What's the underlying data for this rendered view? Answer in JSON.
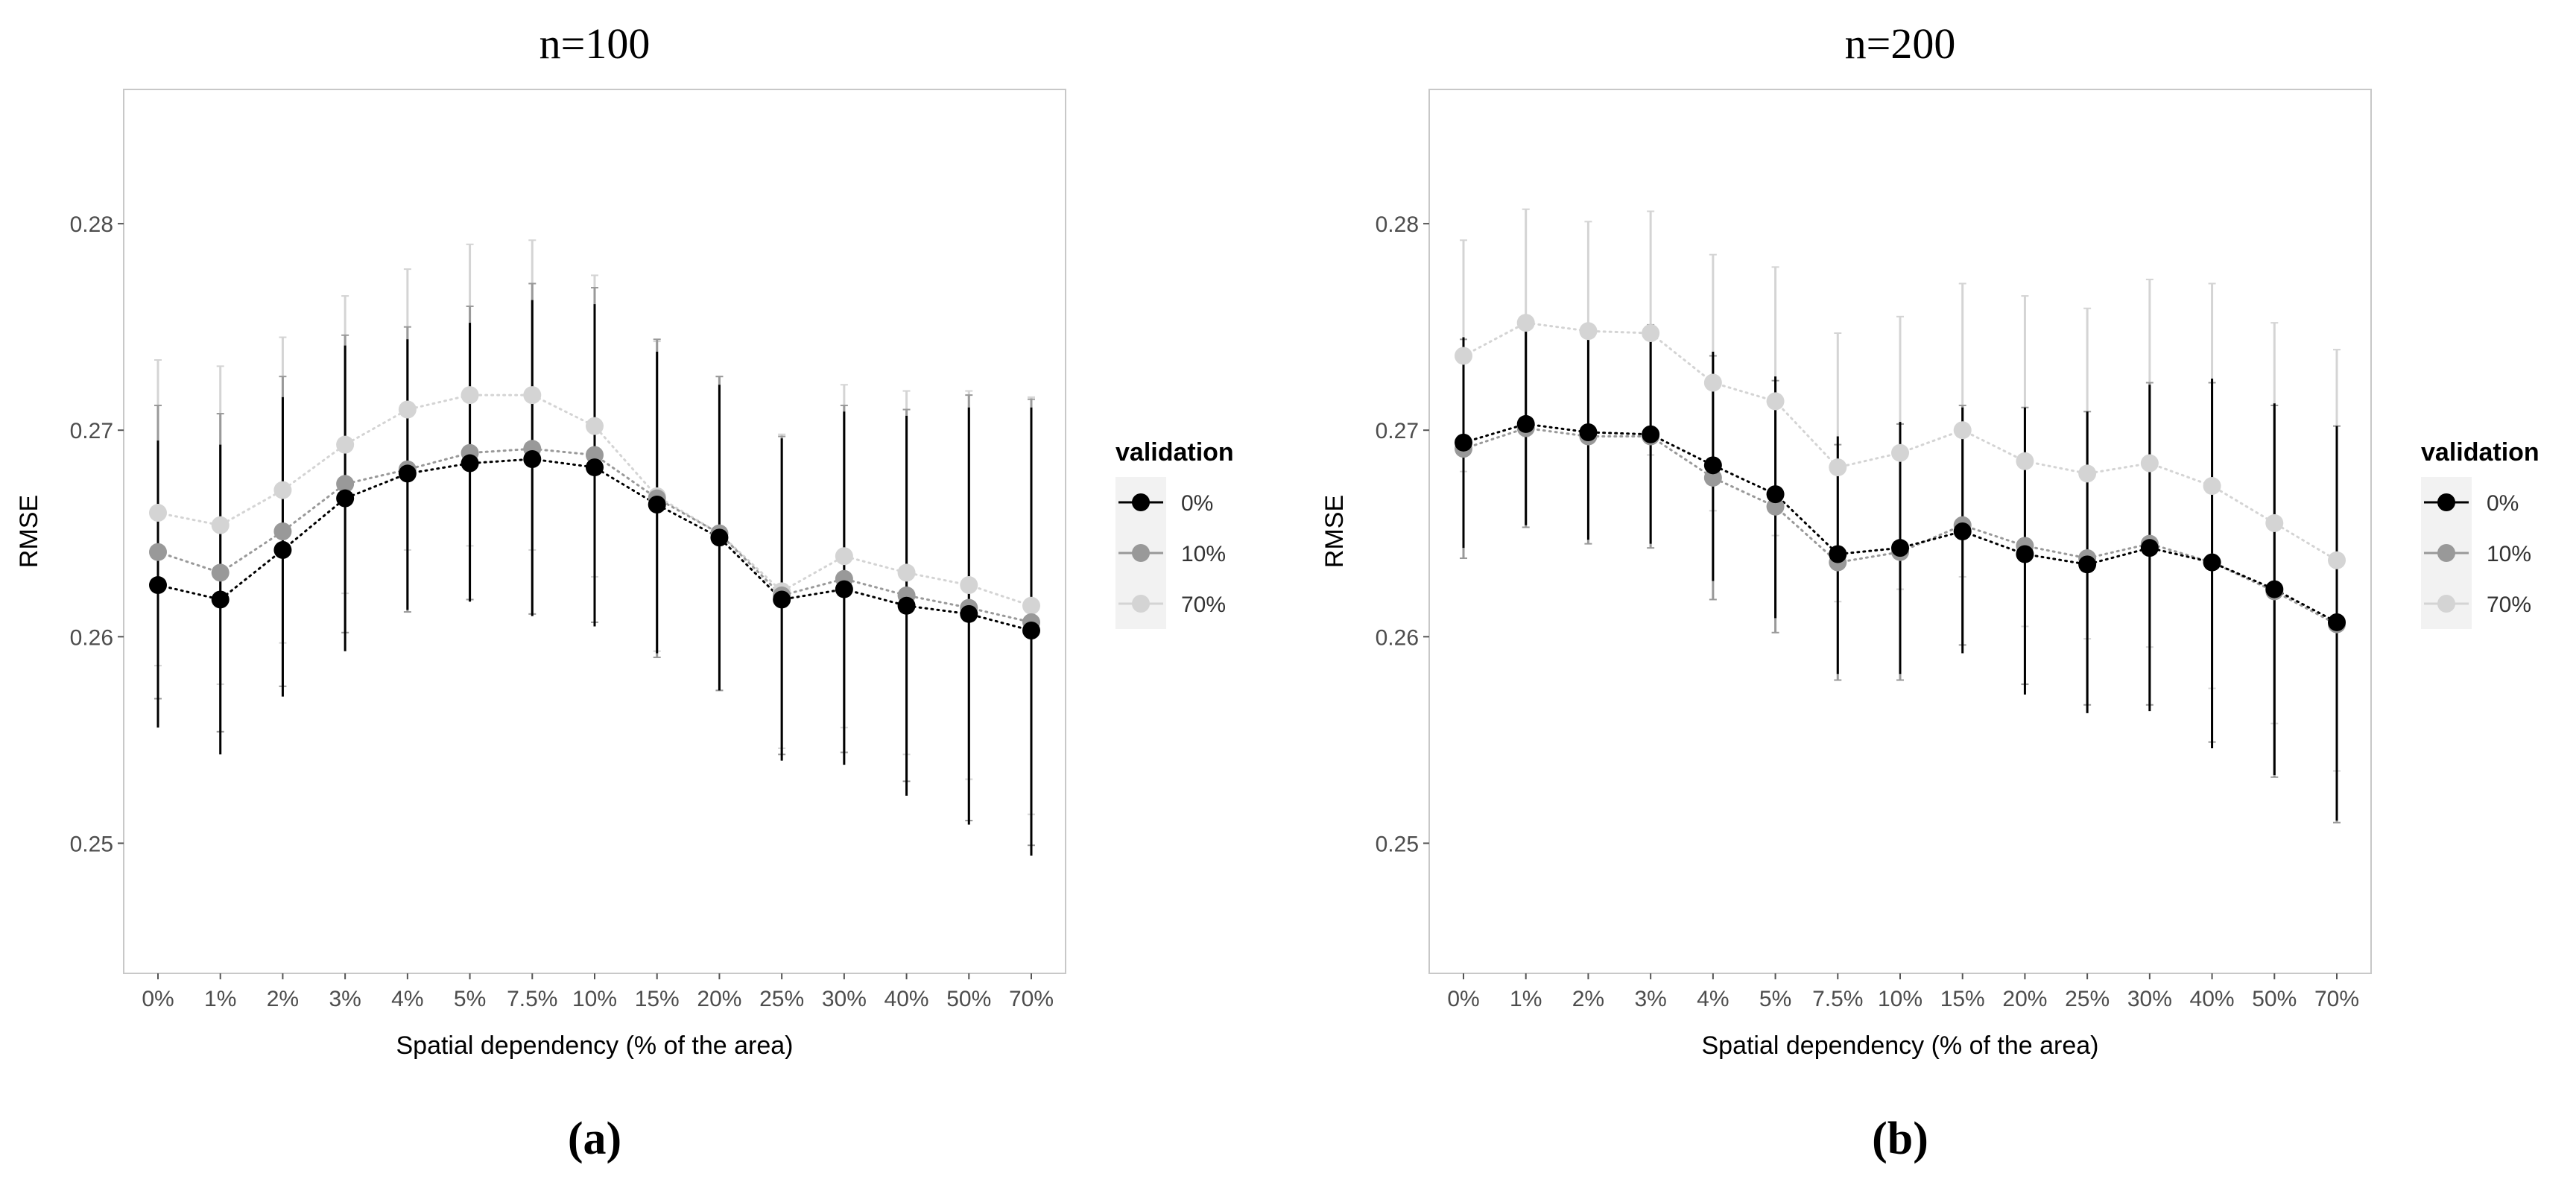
{
  "legend_title": "validation",
  "panels": [
    {
      "title": "n=100",
      "caption": "(a)",
      "xlabel": "Spatial dependency (% of the area)",
      "ylabel": "RMSE"
    },
    {
      "title": "n=200",
      "caption": "(b)",
      "xlabel": "Spatial dependency (% of the area)",
      "ylabel": "RMSE"
    }
  ],
  "chart_data": [
    {
      "type": "line",
      "title": "n=100",
      "xlabel": "Spatial dependency (% of the area)",
      "ylabel": "RMSE",
      "ylim": [
        0.2437,
        0.2865
      ],
      "yticks": [
        0.25,
        0.26,
        0.27,
        0.28
      ],
      "ytick_labels": [
        "0.25",
        "0.26",
        "0.27",
        "0.28"
      ],
      "grid": false,
      "legend_title": "validation",
      "legend_position": "right",
      "categories": [
        "0%",
        "1%",
        "2%",
        "3%",
        "4%",
        "5%",
        "7.5%",
        "10%",
        "15%",
        "20%",
        "25%",
        "30%",
        "40%",
        "50%",
        "70%"
      ],
      "series": [
        {
          "name": "70%",
          "color": "#d4d4d4",
          "values": [
            0.266,
            0.2654,
            0.2671,
            0.2693,
            0.271,
            0.2717,
            0.2717,
            0.2702,
            0.2668,
            0.265,
            0.2622,
            0.2639,
            0.2631,
            0.2625,
            0.2615
          ],
          "upper": [
            0.2734,
            0.2731,
            0.2745,
            0.2765,
            0.2778,
            0.279,
            0.2792,
            0.2775,
            0.2743,
            0.2726,
            0.2698,
            0.2722,
            0.2719,
            0.2719,
            0.2716
          ],
          "lower": [
            0.2586,
            0.2577,
            0.2597,
            0.2621,
            0.2642,
            0.2644,
            0.2642,
            0.2629,
            0.2593,
            0.2574,
            0.2546,
            0.2556,
            0.2543,
            0.2531,
            0.2514
          ]
        },
        {
          "name": "10%",
          "color": "#999999",
          "values": [
            0.2641,
            0.2631,
            0.2651,
            0.2674,
            0.2681,
            0.2689,
            0.2691,
            0.2688,
            0.2667,
            0.265,
            0.262,
            0.2628,
            0.262,
            0.2614,
            0.2607
          ],
          "upper": [
            0.2712,
            0.2708,
            0.2726,
            0.2746,
            0.275,
            0.276,
            0.2771,
            0.2769,
            0.2744,
            0.2726,
            0.2697,
            0.2712,
            0.271,
            0.2717,
            0.2715
          ],
          "lower": [
            0.257,
            0.2554,
            0.2576,
            0.2602,
            0.2612,
            0.2618,
            0.2611,
            0.2607,
            0.259,
            0.2574,
            0.2543,
            0.2544,
            0.253,
            0.2511,
            0.2499
          ]
        },
        {
          "name": "0%",
          "color": "#000000",
          "values": [
            0.2625,
            0.2618,
            0.2642,
            0.2667,
            0.2679,
            0.2684,
            0.2686,
            0.2682,
            0.2664,
            0.2648,
            0.2618,
            0.2623,
            0.2615,
            0.2611,
            0.2603
          ],
          "upper": [
            0.2695,
            0.2693,
            0.2716,
            0.2741,
            0.2744,
            0.2752,
            0.2763,
            0.2761,
            0.2738,
            0.2722,
            0.2696,
            0.2709,
            0.2707,
            0.2711,
            0.2711
          ],
          "lower": [
            0.2556,
            0.2543,
            0.2571,
            0.2593,
            0.2613,
            0.2617,
            0.261,
            0.2605,
            0.2592,
            0.2574,
            0.254,
            0.2538,
            0.2523,
            0.2509,
            0.2494
          ]
        }
      ]
    },
    {
      "type": "line",
      "title": "n=200",
      "xlabel": "Spatial dependency (% of the area)",
      "ylabel": "RMSE",
      "ylim": [
        0.2437,
        0.2865
      ],
      "yticks": [
        0.25,
        0.26,
        0.27,
        0.28
      ],
      "ytick_labels": [
        "0.25",
        "0.26",
        "0.27",
        "0.28"
      ],
      "grid": false,
      "legend_title": "validation",
      "legend_position": "right",
      "categories": [
        "0%",
        "1%",
        "2%",
        "3%",
        "4%",
        "5%",
        "7.5%",
        "10%",
        "15%",
        "20%",
        "25%",
        "30%",
        "40%",
        "50%",
        "70%"
      ],
      "series": [
        {
          "name": "70%",
          "color": "#d4d4d4",
          "values": [
            0.2736,
            0.2752,
            0.2748,
            0.2747,
            0.2723,
            0.2714,
            0.2682,
            0.2689,
            0.27,
            0.2685,
            0.2679,
            0.2684,
            0.2673,
            0.2655,
            0.2637
          ],
          "upper": [
            0.2792,
            0.2807,
            0.2801,
            0.2806,
            0.2785,
            0.2779,
            0.2747,
            0.2755,
            0.2771,
            0.2765,
            0.2759,
            0.2773,
            0.2771,
            0.2752,
            0.2739
          ],
          "lower": [
            0.268,
            0.2697,
            0.2695,
            0.2688,
            0.2661,
            0.2649,
            0.2617,
            0.2623,
            0.2629,
            0.2605,
            0.2599,
            0.2595,
            0.2575,
            0.2558,
            0.2535
          ]
        },
        {
          "name": "10%",
          "color": "#999999",
          "values": [
            0.2691,
            0.2701,
            0.2697,
            0.2697,
            0.2677,
            0.2663,
            0.2636,
            0.2641,
            0.2654,
            0.2644,
            0.2638,
            0.2645,
            0.2636,
            0.2622,
            0.2606
          ],
          "upper": [
            0.2744,
            0.2749,
            0.2749,
            0.2751,
            0.2736,
            0.2724,
            0.2693,
            0.2703,
            0.2712,
            0.2711,
            0.2709,
            0.2723,
            0.2723,
            0.2712,
            0.2702
          ],
          "lower": [
            0.2638,
            0.2653,
            0.2645,
            0.2643,
            0.2618,
            0.2602,
            0.2579,
            0.2579,
            0.2596,
            0.2577,
            0.2567,
            0.2567,
            0.2549,
            0.2532,
            0.251
          ]
        },
        {
          "name": "0%",
          "color": "#000000",
          "values": [
            0.2694,
            0.2703,
            0.2699,
            0.2698,
            0.2683,
            0.2669,
            0.264,
            0.2643,
            0.2651,
            0.264,
            0.2635,
            0.2643,
            0.2636,
            0.2623,
            0.2607
          ],
          "upper": [
            0.2745,
            0.2752,
            0.2751,
            0.2751,
            0.2738,
            0.2726,
            0.2697,
            0.2704,
            0.2711,
            0.2711,
            0.2709,
            0.2722,
            0.2725,
            0.2713,
            0.2702
          ],
          "lower": [
            0.2643,
            0.2654,
            0.2647,
            0.2645,
            0.2627,
            0.2609,
            0.2582,
            0.2582,
            0.2592,
            0.2572,
            0.2563,
            0.2564,
            0.2546,
            0.2533,
            0.2511
          ]
        }
      ]
    }
  ]
}
